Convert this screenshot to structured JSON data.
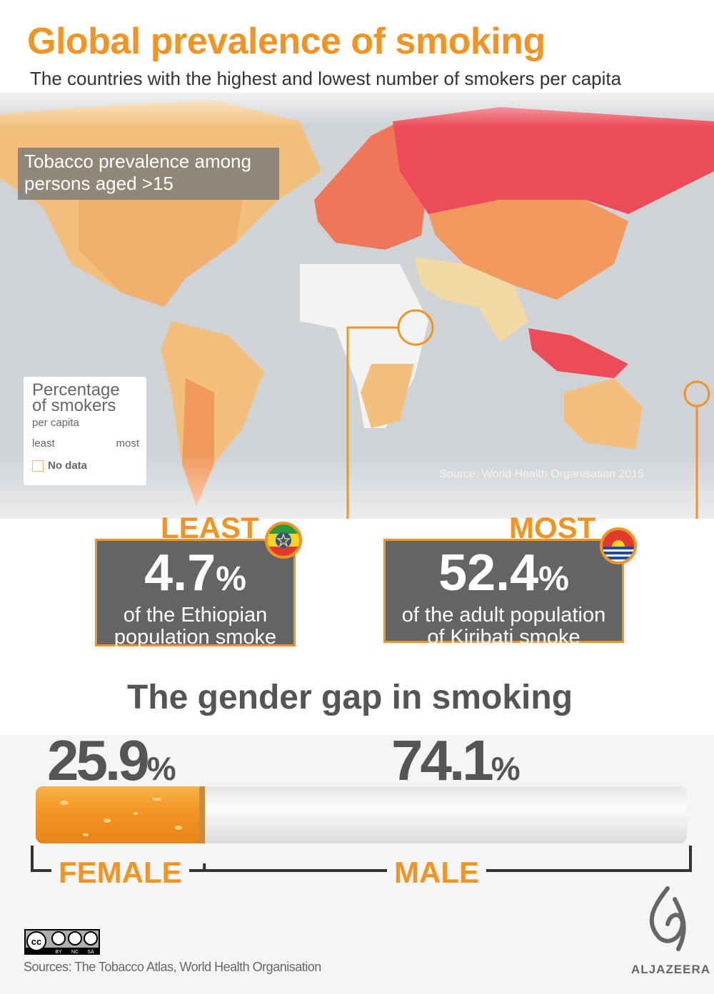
{
  "header": {
    "title": "Global prevalence of smoking",
    "subtitle": "The countries with the highest and lowest number of smokers per capita"
  },
  "map": {
    "label": "Tobacco prevalence among persons aged >15",
    "source": "Source: World Health Organisation 2015",
    "legend": {
      "title": "Percentage of smokers",
      "subtitle": "per capita",
      "least": "least",
      "most": "most",
      "no_data": "No data"
    },
    "colors": {
      "ocean": "#cfd3d6",
      "lowest": "#f3d9a2",
      "low": "#f2c07c",
      "mid": "#f29a5e",
      "high": "#f0765a",
      "highest": "#ee4b5a",
      "no_data": "#f3f3f1"
    }
  },
  "least": {
    "tag": "LEAST",
    "value": "4.7",
    "unit": "%",
    "desc1": "of the Ethiopian",
    "desc2": "population smoke",
    "flag": "ethiopia-flag"
  },
  "most": {
    "tag": "MOST",
    "value": "52.4",
    "unit": "%",
    "desc1": "of the adult population",
    "desc2": "of Kiribati smoke",
    "flag": "kiribati-flag"
  },
  "gender": {
    "title": "The gender gap in smoking",
    "female": {
      "value": "25.9",
      "unit": "%",
      "label": "FEMALE",
      "share": 25.9
    },
    "male": {
      "value": "74.1",
      "unit": "%",
      "label": "MALE",
      "share": 74.1
    }
  },
  "footer": {
    "license": "CC BY NC SA",
    "credit": "Sources: The Tobacco Atlas, World Health Organisation",
    "logo": "ALJAZEERA"
  },
  "accent": "#f39322"
}
